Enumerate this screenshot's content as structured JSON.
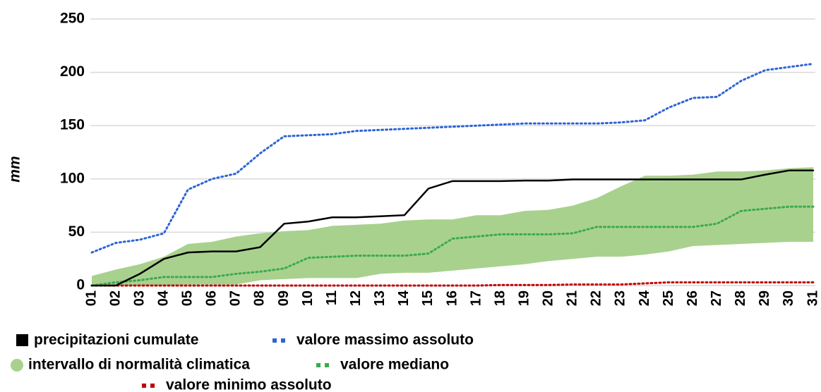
{
  "chart_data": {
    "type": "line",
    "y_label": "mm",
    "categories": [
      "01",
      "02",
      "03",
      "04",
      "05",
      "06",
      "07",
      "08",
      "09",
      "10",
      "11",
      "12",
      "13",
      "14",
      "15",
      "16",
      "17",
      "18",
      "19",
      "20",
      "21",
      "22",
      "23",
      "24",
      "25",
      "26",
      "27",
      "28",
      "29",
      "30",
      "31"
    ],
    "ylim": [
      0,
      250
    ],
    "yticks": [
      0,
      50,
      100,
      150,
      200,
      250
    ],
    "grid": true,
    "band": {
      "name": "intervallo di normalità climatica",
      "color": "#a9d18e",
      "upper": [
        9,
        15,
        20,
        27,
        39,
        41,
        46,
        49,
        51,
        52,
        56,
        57,
        58,
        61,
        62,
        62,
        66,
        66,
        70,
        71,
        75,
        82,
        93,
        103,
        103,
        104,
        107,
        107,
        108,
        110,
        111
      ],
      "lower": [
        0,
        0,
        0,
        0,
        1,
        1,
        1,
        5,
        6,
        7,
        7,
        7,
        11,
        12,
        12,
        14,
        16,
        18,
        20,
        23,
        25,
        27,
        27,
        29,
        32,
        37,
        38,
        39,
        40,
        41,
        41
      ]
    },
    "series": [
      {
        "name": "precipitazioni cumulate",
        "color": "#000000",
        "style": "solid",
        "values": [
          0,
          0,
          11,
          25,
          31,
          32,
          32,
          36,
          58,
          60,
          64,
          64,
          65,
          66,
          91,
          98,
          98,
          98,
          98.5,
          98.5,
          99.5,
          99.5,
          99.5,
          99.5,
          99.5,
          99.5,
          99.5,
          99.5,
          104,
          108,
          108
        ]
      },
      {
        "name": "valore massimo assoluto",
        "color": "#2e64d6",
        "style": "dotted",
        "values": [
          31,
          40,
          43,
          49,
          90,
          100,
          105,
          124,
          140,
          141,
          142,
          145,
          146,
          147,
          148,
          149,
          150,
          151,
          152,
          152,
          152,
          152,
          153,
          155,
          167,
          176,
          177,
          192,
          202,
          205,
          208
        ]
      },
      {
        "name": "valore mediano",
        "color": "#3aaa50",
        "style": "dotted",
        "values": [
          0,
          3,
          5,
          8,
          8,
          8,
          11,
          13,
          16,
          26,
          27,
          28,
          28,
          28,
          30,
          44,
          46,
          48,
          48,
          48,
          49,
          55,
          55,
          55,
          55,
          55,
          58,
          70,
          72,
          74,
          74
        ]
      },
      {
        "name": "valore minimo assoluto",
        "color": "#c00000",
        "style": "dotted",
        "values": [
          0,
          0,
          0,
          0,
          0,
          0,
          0,
          0,
          0,
          0,
          0,
          0,
          0,
          0,
          0,
          0,
          0,
          0.5,
          0.5,
          0.5,
          1,
          1,
          1,
          2,
          3,
          3,
          3,
          3,
          3,
          3,
          3
        ]
      }
    ]
  }
}
